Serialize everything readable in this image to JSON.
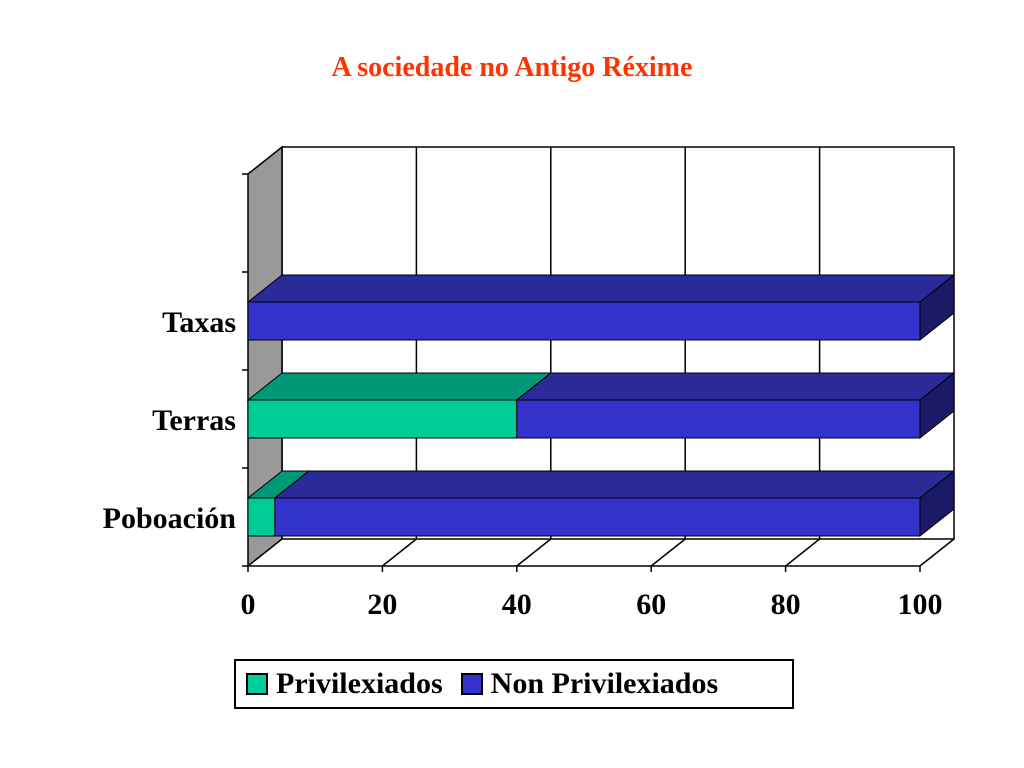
{
  "chart_data": {
    "type": "bar",
    "orientation": "horizontal",
    "stacked": true,
    "three_d": true,
    "title": "A sociedade no Antigo Réxime",
    "categories": [
      "Poboación",
      "Terras",
      "Taxas"
    ],
    "series": [
      {
        "name": "Privilexiados",
        "values": [
          4,
          40,
          0
        ],
        "color": "#00cc99"
      },
      {
        "name": "Non Privilexiados",
        "values": [
          96,
          60,
          100
        ],
        "color": "#3333cc"
      }
    ],
    "xlim": [
      0,
      100
    ],
    "xticks": [
      "0",
      "20",
      "40",
      "60",
      "80",
      "100"
    ],
    "grid": true,
    "legend_position": "bottom"
  },
  "colors": {
    "title": "#ff3300",
    "wall": "#999999",
    "privilexiados_top": "#009977",
    "non_privilexiados_top": "#2a2a99",
    "non_privilexiados_side": "#1a1a66"
  }
}
